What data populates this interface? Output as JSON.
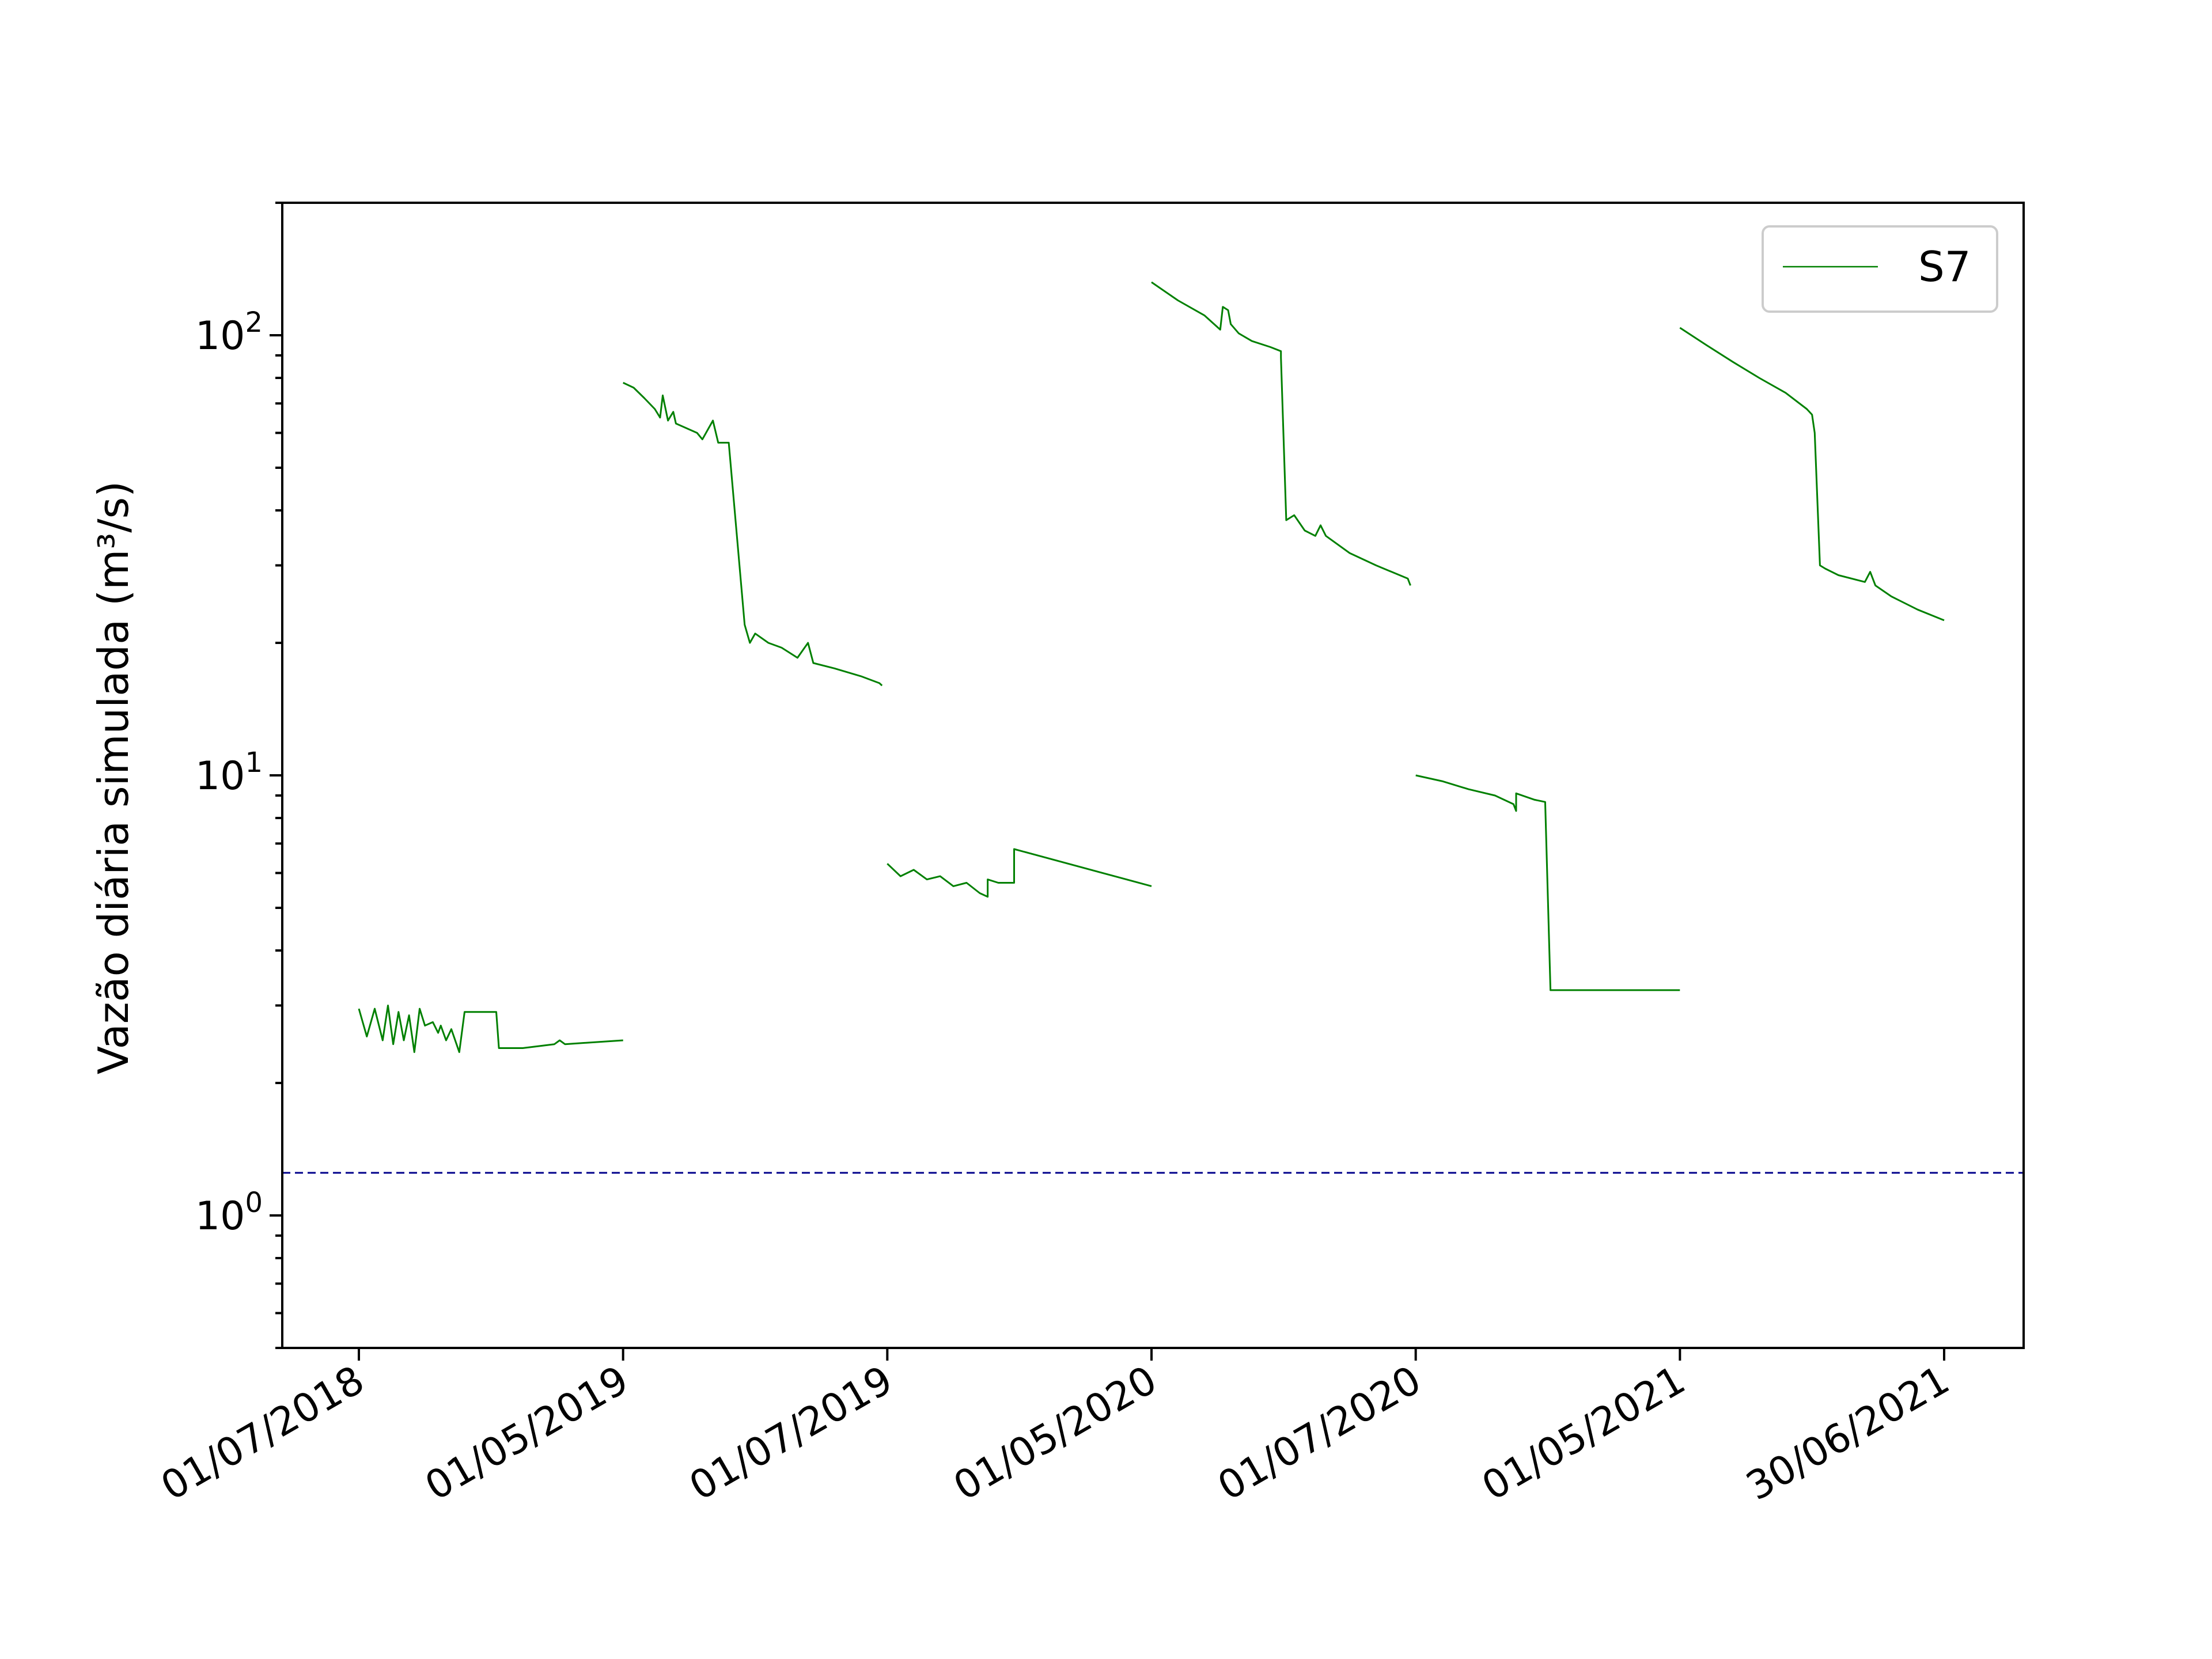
{
  "chart_data": {
    "type": "line",
    "title": "",
    "xlabel": "",
    "ylabel": "Vazão diária simulada (m³/s)",
    "yscale": "log",
    "ylim": [
      0.5,
      200
    ],
    "y_ticks": [
      {
        "value": 1,
        "base": "10",
        "exp": "0"
      },
      {
        "value": 10,
        "base": "10",
        "exp": "1"
      },
      {
        "value": 100,
        "base": "10",
        "exp": "2"
      }
    ],
    "x_categories": [
      "01/07/2018",
      "01/05/2019",
      "01/07/2019",
      "01/05/2020",
      "01/07/2020",
      "01/05/2021",
      "30/06/2021"
    ],
    "legend": {
      "position": "top-right",
      "entries": [
        "S7"
      ]
    },
    "reference_line": {
      "value": 1.25,
      "color": "#00008b",
      "style": "dashed"
    },
    "grid": false,
    "series": [
      {
        "name": "S7",
        "color": "#008000",
        "segments": [
          {
            "from": "01/07/2018",
            "to": "01/05/2019",
            "points": [
              [
                0,
                2.95
              ],
              [
                0.03,
                2.55
              ],
              [
                0.06,
                2.95
              ],
              [
                0.09,
                2.5
              ],
              [
                0.11,
                3.0
              ],
              [
                0.13,
                2.45
              ],
              [
                0.15,
                2.9
              ],
              [
                0.17,
                2.5
              ],
              [
                0.19,
                2.85
              ],
              [
                0.21,
                2.35
              ],
              [
                0.23,
                2.95
              ],
              [
                0.25,
                2.7
              ],
              [
                0.28,
                2.75
              ],
              [
                0.3,
                2.6
              ],
              [
                0.31,
                2.7
              ],
              [
                0.33,
                2.5
              ],
              [
                0.35,
                2.65
              ],
              [
                0.38,
                2.35
              ],
              [
                0.4,
                2.9
              ],
              [
                0.48,
                2.9
              ],
              [
                0.52,
                2.9
              ],
              [
                0.53,
                2.4
              ],
              [
                0.62,
                2.4
              ],
              [
                0.74,
                2.45
              ],
              [
                0.76,
                2.5
              ],
              [
                0.78,
                2.45
              ],
              [
                1.0,
                2.5
              ]
            ]
          },
          {
            "from": "01/05/2019",
            "to": "01/07/2019",
            "points": [
              [
                0,
                78
              ],
              [
                0.04,
                76
              ],
              [
                0.08,
                72
              ],
              [
                0.12,
                68
              ],
              [
                0.14,
                65
              ],
              [
                0.15,
                73
              ],
              [
                0.17,
                64
              ],
              [
                0.19,
                67
              ],
              [
                0.2,
                63
              ],
              [
                0.28,
                60
              ],
              [
                0.3,
                58
              ],
              [
                0.34,
                64
              ],
              [
                0.36,
                57
              ],
              [
                0.4,
                57
              ],
              [
                0.46,
                22
              ],
              [
                0.48,
                20
              ],
              [
                0.5,
                21
              ],
              [
                0.55,
                20
              ],
              [
                0.6,
                19.5
              ],
              [
                0.66,
                18.5
              ],
              [
                0.7,
                20
              ],
              [
                0.72,
                18
              ],
              [
                0.8,
                17.5
              ],
              [
                0.9,
                16.8
              ],
              [
                0.97,
                16.2
              ],
              [
                0.98,
                16.0
              ]
            ]
          },
          {
            "from": "01/07/2019",
            "to": "01/05/2020",
            "points": [
              [
                0,
                6.3
              ],
              [
                0.05,
                5.9
              ],
              [
                0.1,
                6.1
              ],
              [
                0.15,
                5.8
              ],
              [
                0.2,
                5.9
              ],
              [
                0.25,
                5.6
              ],
              [
                0.3,
                5.7
              ],
              [
                0.35,
                5.4
              ],
              [
                0.38,
                5.3
              ],
              [
                0.38,
                5.8
              ],
              [
                0.42,
                5.7
              ],
              [
                0.48,
                5.7
              ],
              [
                0.48,
                6.8
              ],
              [
                1.0,
                5.6
              ]
            ]
          },
          {
            "from": "01/05/2020",
            "to": "01/07/2020",
            "points": [
              [
                0,
                132
              ],
              [
                0.1,
                120
              ],
              [
                0.2,
                111
              ],
              [
                0.26,
                103
              ],
              [
                0.27,
                116
              ],
              [
                0.29,
                114
              ],
              [
                0.3,
                106
              ],
              [
                0.33,
                101
              ],
              [
                0.38,
                97
              ],
              [
                0.45,
                94
              ],
              [
                0.49,
                92
              ],
              [
                0.49,
                89
              ],
              [
                0.51,
                38
              ],
              [
                0.54,
                39
              ],
              [
                0.58,
                36
              ],
              [
                0.62,
                35
              ],
              [
                0.64,
                37
              ],
              [
                0.66,
                35
              ],
              [
                0.75,
                32
              ],
              [
                0.85,
                30
              ],
              [
                0.97,
                28
              ],
              [
                0.98,
                27
              ]
            ]
          },
          {
            "from": "01/07/2020",
            "to": "01/05/2021",
            "points": [
              [
                0,
                10
              ],
              [
                0.1,
                9.7
              ],
              [
                0.2,
                9.3
              ],
              [
                0.3,
                9.0
              ],
              [
                0.37,
                8.6
              ],
              [
                0.38,
                8.3
              ],
              [
                0.38,
                9.1
              ],
              [
                0.45,
                8.8
              ],
              [
                0.49,
                8.7
              ],
              [
                0.51,
                3.25
              ],
              [
                0.7,
                3.25
              ],
              [
                1.0,
                3.25
              ]
            ]
          },
          {
            "from": "01/05/2021",
            "to": "30/06/2021",
            "points": [
              [
                0,
                104
              ],
              [
                0.1,
                95
              ],
              [
                0.2,
                87
              ],
              [
                0.3,
                80
              ],
              [
                0.4,
                74
              ],
              [
                0.48,
                68
              ],
              [
                0.5,
                66
              ],
              [
                0.51,
                60
              ],
              [
                0.53,
                30
              ],
              [
                0.55,
                29.5
              ],
              [
                0.6,
                28.5
              ],
              [
                0.7,
                27.5
              ],
              [
                0.72,
                29
              ],
              [
                0.74,
                27
              ],
              [
                0.8,
                25.5
              ],
              [
                0.9,
                23.8
              ],
              [
                1.0,
                22.5
              ]
            ]
          }
        ]
      }
    ]
  }
}
